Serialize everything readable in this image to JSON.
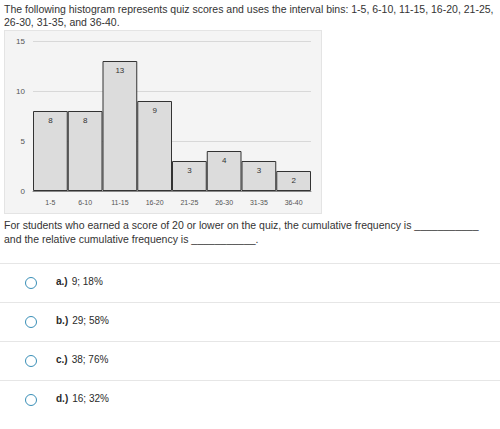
{
  "intro": "The following histogram represents quiz scores and uses the interval bins: 1-5, 6-10, 11-15, 16-20, 21-25, 26-30, 31-35, and 36-40.",
  "chart_data": {
    "type": "bar",
    "categories": [
      "1-5",
      "6-10",
      "11-15",
      "16-20",
      "21-25",
      "26-30",
      "31-35",
      "36-40"
    ],
    "values": [
      8,
      8,
      13,
      9,
      3,
      4,
      3,
      2
    ],
    "color": "#dcdcdc",
    "ylim": [
      0,
      15
    ],
    "yticks": [
      0,
      5,
      10,
      15
    ],
    "grid": true,
    "data_labels": true
  },
  "question": "For students who earned a score of 20 or lower on the quiz, the cumulative frequency is ___________ and the relative cumulative frequency is ___________.",
  "options": [
    {
      "letter": "a.)",
      "text": "9; 18%"
    },
    {
      "letter": "b.)",
      "text": "29; 58%"
    },
    {
      "letter": "c.)",
      "text": "38; 76%"
    },
    {
      "letter": "d.)",
      "text": "16; 32%"
    }
  ]
}
